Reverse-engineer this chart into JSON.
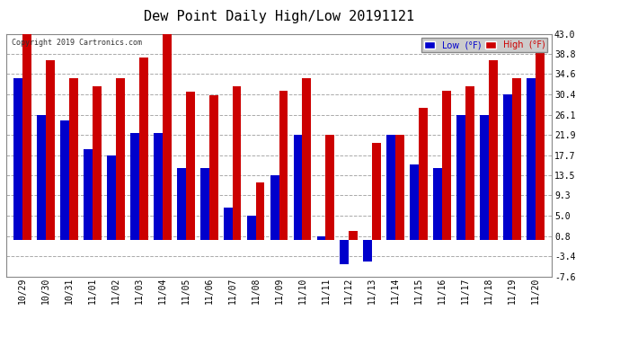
{
  "title": "Dew Point Daily High/Low 20191121",
  "copyright": "Copyright 2019 Cartronics.com",
  "dates": [
    "10/29",
    "10/30",
    "10/31",
    "11/01",
    "11/02",
    "11/03",
    "11/04",
    "11/05",
    "11/06",
    "11/07",
    "11/08",
    "11/09",
    "11/10",
    "11/11",
    "11/12",
    "11/13",
    "11/14",
    "11/15",
    "11/16",
    "11/17",
    "11/18",
    "11/19",
    "11/20"
  ],
  "low": [
    33.8,
    26.1,
    25.0,
    19.0,
    17.7,
    22.3,
    22.3,
    14.9,
    14.9,
    6.8,
    5.0,
    13.5,
    22.0,
    0.8,
    -5.0,
    -4.5,
    22.0,
    15.8,
    14.9,
    26.1,
    26.1,
    30.4,
    33.8
  ],
  "high": [
    43.0,
    37.4,
    33.8,
    32.0,
    33.8,
    38.0,
    44.0,
    31.0,
    30.2,
    32.0,
    12.0,
    31.1,
    33.8,
    22.0,
    1.8,
    20.3,
    22.0,
    27.5,
    31.1,
    32.0,
    37.4,
    33.8,
    41.0
  ],
  "ylim": [
    -7.6,
    43.0
  ],
  "yticks": [
    -7.6,
    -3.4,
    0.8,
    5.0,
    9.3,
    13.5,
    17.7,
    21.9,
    26.1,
    30.4,
    34.6,
    38.8,
    43.0
  ],
  "ytick_labels": [
    "-7.6",
    "-3.4",
    "0.8",
    "5.0",
    "9.3",
    "13.5",
    "17.7",
    "21.9",
    "26.1",
    "30.4",
    "34.6",
    "38.8",
    "43.0"
  ],
  "bar_width": 0.38,
  "blue_color": "#0000cc",
  "red_color": "#cc0000",
  "bg_color": "#ffffff",
  "grid_color": "#aaaaaa",
  "title_fontsize": 11,
  "tick_fontsize": 7,
  "legend_fontsize": 7
}
